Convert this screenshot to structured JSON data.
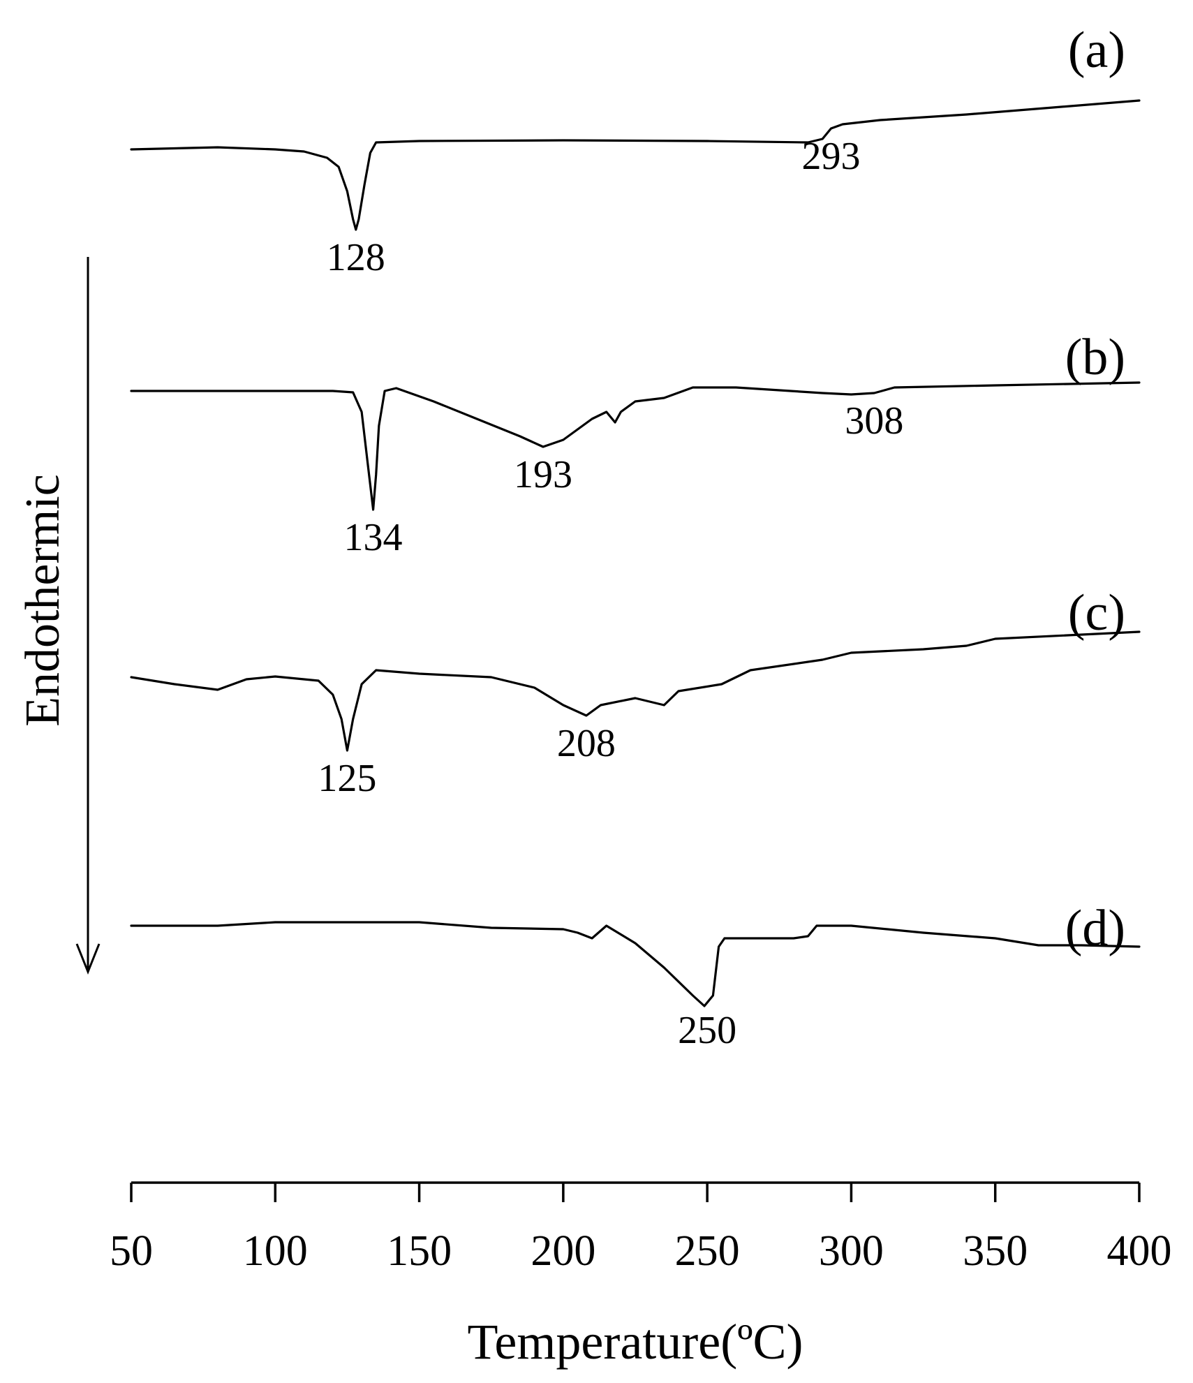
{
  "chart_data": {
    "type": "line",
    "title": "",
    "xlabel": "Temperature(ºC)",
    "ylabel": "Endothermic",
    "xlim": [
      50,
      400
    ],
    "xticks": [
      50,
      100,
      150,
      200,
      250,
      300,
      350,
      400
    ],
    "grid": false,
    "legend": "none",
    "y_direction_note": "downward arrow = endothermic",
    "series": [
      {
        "name": "(a)",
        "points": [
          [
            50,
            0
          ],
          [
            80,
            0.3
          ],
          [
            100,
            0
          ],
          [
            110,
            -0.3
          ],
          [
            118,
            -1.2
          ],
          [
            122,
            -2.5
          ],
          [
            125,
            -6
          ],
          [
            127,
            -10
          ],
          [
            128,
            -11.5
          ],
          [
            129,
            -10
          ],
          [
            131,
            -5
          ],
          [
            133,
            -0.5
          ],
          [
            135,
            1
          ],
          [
            150,
            1.2
          ],
          [
            200,
            1.3
          ],
          [
            250,
            1.2
          ],
          [
            285,
            1
          ],
          [
            290,
            1.5
          ],
          [
            293,
            3
          ],
          [
            297,
            3.6
          ],
          [
            310,
            4.2
          ],
          [
            340,
            5
          ],
          [
            370,
            6
          ],
          [
            400,
            7
          ]
        ],
        "peaks": [
          {
            "x": 128,
            "label": "128"
          },
          {
            "x": 293,
            "label": "293"
          }
        ]
      },
      {
        "name": "(b)",
        "points": [
          [
            50,
            0
          ],
          [
            120,
            0
          ],
          [
            127,
            -0.2
          ],
          [
            130,
            -3
          ],
          [
            132,
            -10
          ],
          [
            134,
            -17
          ],
          [
            135,
            -12
          ],
          [
            136,
            -5
          ],
          [
            138,
            0
          ],
          [
            142,
            0.4
          ],
          [
            155,
            -1.5
          ],
          [
            170,
            -4
          ],
          [
            185,
            -6.5
          ],
          [
            193,
            -8
          ],
          [
            200,
            -7
          ],
          [
            210,
            -4
          ],
          [
            215,
            -3
          ],
          [
            218,
            -4.5
          ],
          [
            220,
            -3
          ],
          [
            225,
            -1.5
          ],
          [
            235,
            -1
          ],
          [
            245,
            0.5
          ],
          [
            260,
            0.5
          ],
          [
            290,
            -0.3
          ],
          [
            300,
            -0.5
          ],
          [
            308,
            -0.3
          ],
          [
            315,
            0.5
          ],
          [
            350,
            0.8
          ],
          [
            400,
            1.2
          ]
        ],
        "peaks": [
          {
            "x": 134,
            "label": "134"
          },
          {
            "x": 193,
            "label": "193"
          },
          {
            "x": 308,
            "label": "308"
          }
        ]
      },
      {
        "name": "(c)",
        "points": [
          [
            50,
            0
          ],
          [
            65,
            -1
          ],
          [
            80,
            -1.8
          ],
          [
            90,
            -0.3
          ],
          [
            100,
            0.1
          ],
          [
            115,
            -0.5
          ],
          [
            120,
            -2.5
          ],
          [
            123,
            -6
          ],
          [
            125,
            -10.5
          ],
          [
            127,
            -6
          ],
          [
            130,
            -1
          ],
          [
            135,
            1
          ],
          [
            150,
            0.5
          ],
          [
            175,
            0
          ],
          [
            190,
            -1.5
          ],
          [
            200,
            -4
          ],
          [
            208,
            -5.5
          ],
          [
            213,
            -4
          ],
          [
            225,
            -3
          ],
          [
            235,
            -4
          ],
          [
            240,
            -2
          ],
          [
            255,
            -1
          ],
          [
            265,
            1
          ],
          [
            290,
            2.5
          ],
          [
            300,
            3.5
          ],
          [
            325,
            4
          ],
          [
            340,
            4.5
          ],
          [
            350,
            5.5
          ],
          [
            400,
            6.5
          ]
        ],
        "peaks": [
          {
            "x": 125,
            "label": "125"
          },
          {
            "x": 208,
            "label": "208"
          }
        ]
      },
      {
        "name": "(d)",
        "points": [
          [
            50,
            0
          ],
          [
            80,
            0
          ],
          [
            100,
            0.5
          ],
          [
            150,
            0.5
          ],
          [
            175,
            -0.3
          ],
          [
            200,
            -0.5
          ],
          [
            205,
            -1
          ],
          [
            210,
            -1.8
          ],
          [
            215,
            0
          ],
          [
            225,
            -2.5
          ],
          [
            235,
            -6
          ],
          [
            245,
            -10
          ],
          [
            249,
            -11.5
          ],
          [
            252,
            -10
          ],
          [
            254,
            -3
          ],
          [
            256,
            -1.8
          ],
          [
            280,
            -1.8
          ],
          [
            285,
            -1.5
          ],
          [
            288,
            0
          ],
          [
            300,
            0
          ],
          [
            325,
            -1
          ],
          [
            350,
            -1.8
          ],
          [
            365,
            -2.8
          ],
          [
            380,
            -2.8
          ],
          [
            400,
            -3
          ]
        ],
        "peaks": [
          {
            "x": 250,
            "label": "250"
          }
        ]
      }
    ]
  }
}
